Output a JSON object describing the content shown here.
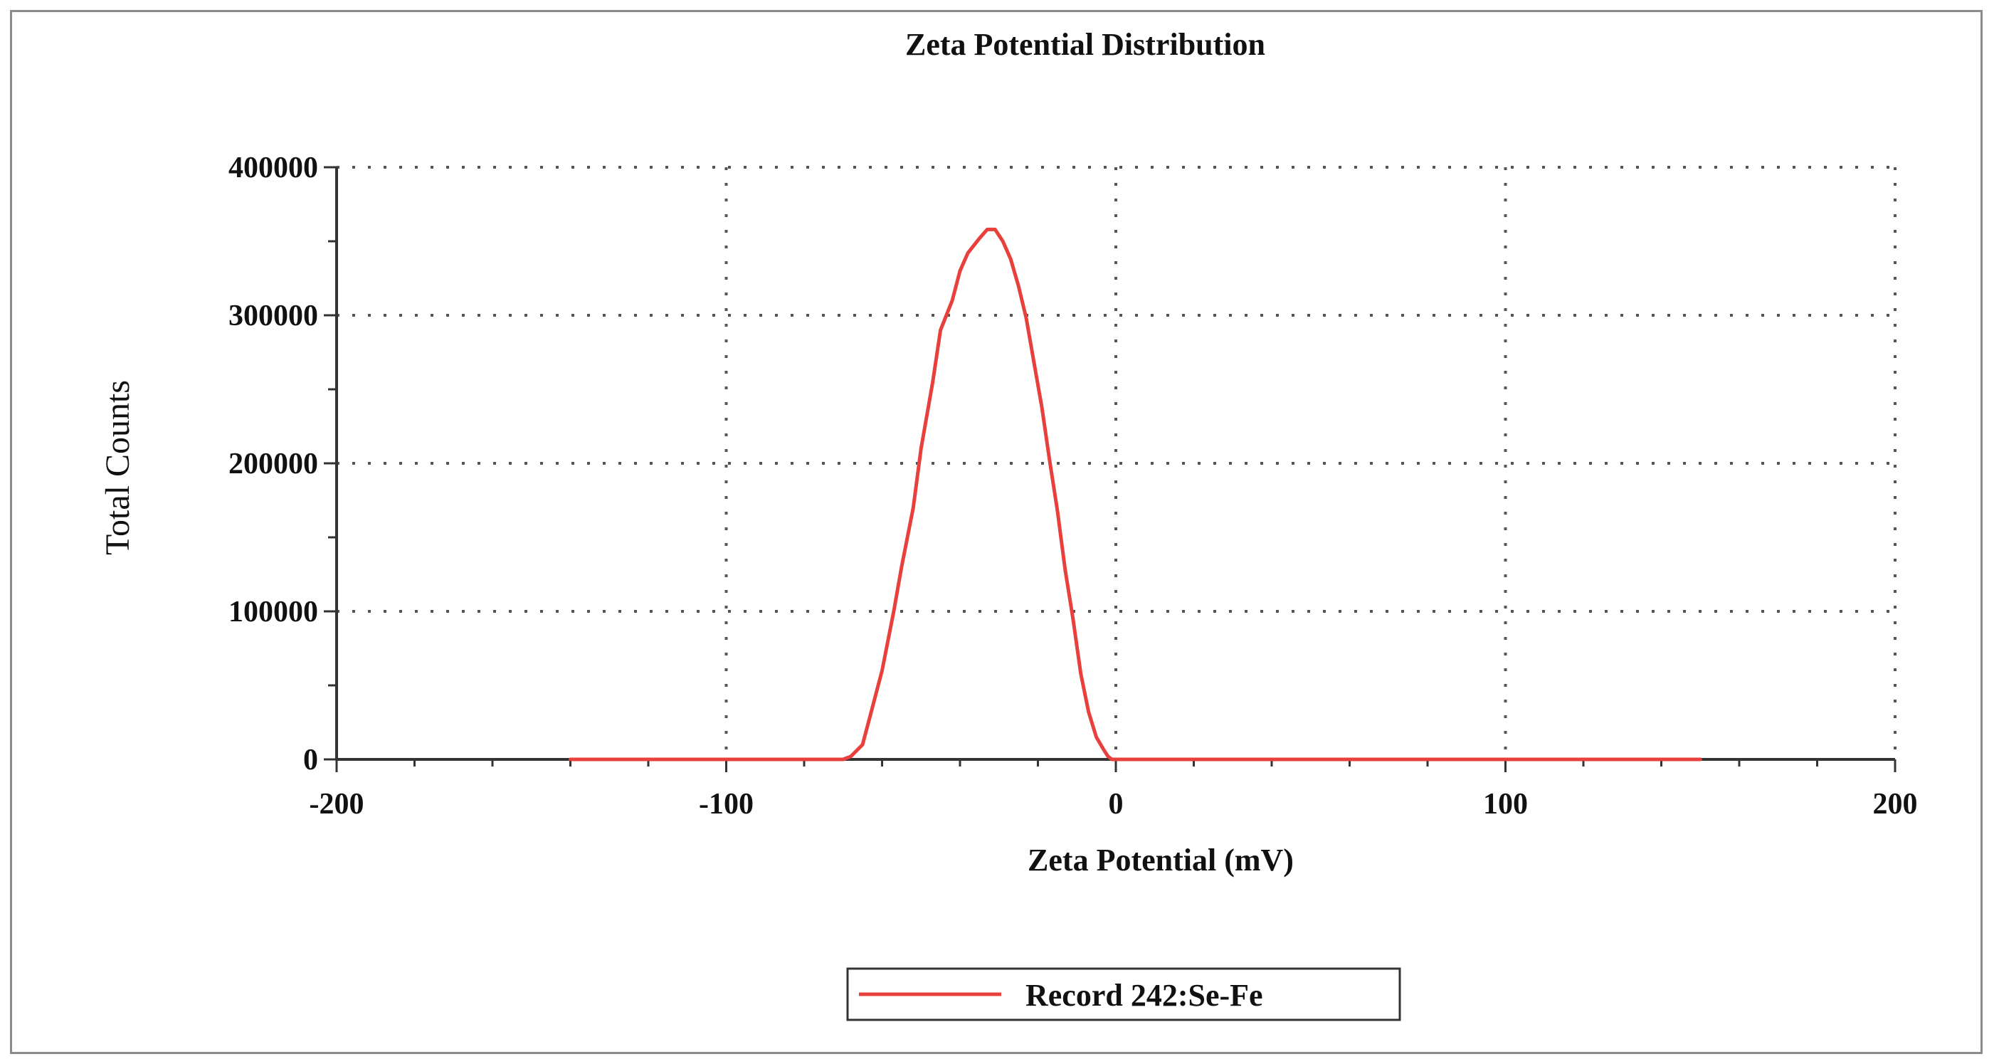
{
  "chart_data": {
    "type": "line",
    "title": "Zeta Potential Distribution",
    "xlabel": "Zeta Potential (mV)",
    "ylabel": "Total Counts",
    "xlim": [
      -200,
      200
    ],
    "ylim": [
      0,
      400000
    ],
    "x_ticks": [
      "-200",
      "-100",
      "0",
      "100",
      "200"
    ],
    "y_ticks": [
      "0",
      "100000",
      "200000",
      "300000",
      "400000"
    ],
    "grid": true,
    "legend_position": "bottom-center",
    "series": [
      {
        "name": "Record 242:Se-Fe",
        "color": "#e8403c",
        "x": [
          -140,
          -100,
          -70,
          -68,
          -65,
          -63,
          -60,
          -57,
          -55,
          -52,
          -50,
          -47,
          -45,
          -42,
          -40,
          -38,
          -35,
          -33,
          -31,
          -29,
          -27,
          -25,
          -23,
          -21,
          -19,
          -17,
          -15,
          -13,
          -11,
          -9,
          -7,
          -5,
          -3,
          -2,
          -1,
          0,
          50,
          100,
          150
        ],
        "y": [
          0,
          0,
          0,
          2000,
          10000,
          30000,
          60000,
          100000,
          130000,
          170000,
          210000,
          255000,
          290000,
          310000,
          330000,
          342000,
          352000,
          358000,
          358000,
          350000,
          338000,
          320000,
          298000,
          268000,
          238000,
          202000,
          168000,
          128000,
          95000,
          58000,
          32000,
          15000,
          6000,
          2000,
          0,
          0,
          0,
          0,
          0
        ]
      }
    ]
  }
}
